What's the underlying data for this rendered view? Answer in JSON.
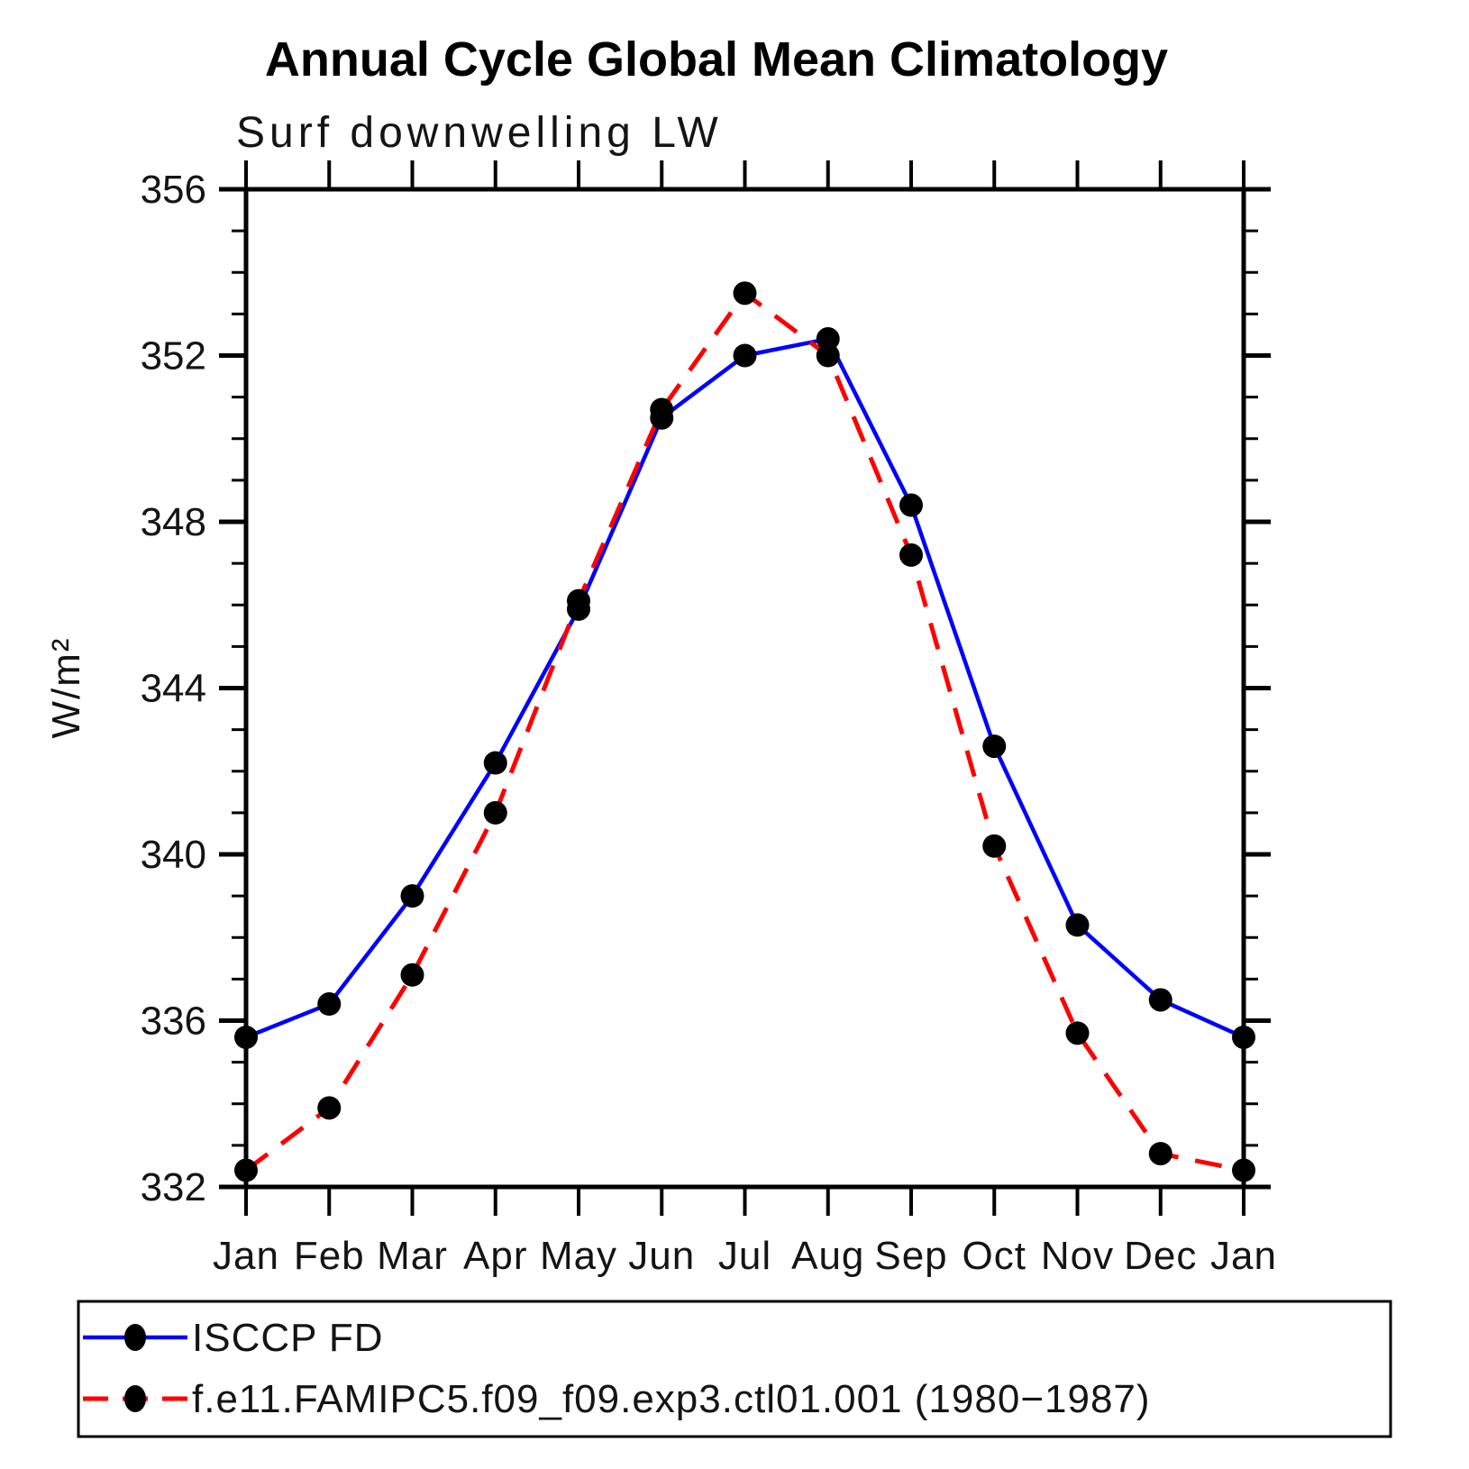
{
  "title": "Annual Cycle Global Mean Climatology",
  "subtitle": "Surf downwelling LW",
  "chart_data": {
    "type": "line",
    "title": "Annual Cycle Global Mean Climatology",
    "subtitle": "Surf downwelling LW",
    "xlabel": "",
    "ylabel": "W/m²",
    "ylim": [
      332,
      356
    ],
    "y_major_ticks": [
      332,
      336,
      340,
      344,
      348,
      352,
      356
    ],
    "y_minor_step": 1,
    "grid": false,
    "legend_position": "bottom",
    "categories": [
      "Jan",
      "Feb",
      "Mar",
      "Apr",
      "May",
      "Jun",
      "Jul",
      "Aug",
      "Sep",
      "Oct",
      "Nov",
      "Dec",
      "Jan"
    ],
    "series": [
      {
        "name": "ISCCP FD",
        "color": "#0000ff",
        "line_style": "solid",
        "marker": "circle",
        "marker_color": "#000000",
        "values": [
          335.6,
          336.4,
          339.0,
          342.2,
          345.9,
          350.5,
          352.0,
          352.4,
          348.4,
          342.6,
          338.3,
          336.5,
          335.6
        ]
      },
      {
        "name": "f.e11.FAMIPC5.f09_f09.exp3.ctl01.001 (1980−1987)",
        "color": "#ff0000",
        "line_style": "dashed",
        "marker": "circle",
        "marker_color": "#000000",
        "values": [
          332.4,
          333.9,
          337.1,
          341.0,
          346.1,
          350.7,
          353.5,
          352.0,
          347.2,
          340.2,
          335.7,
          332.8,
          332.4
        ]
      }
    ]
  }
}
